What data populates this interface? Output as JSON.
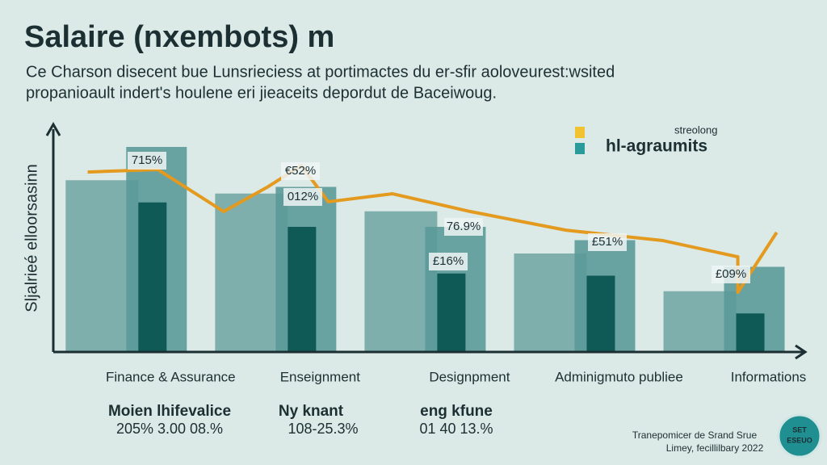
{
  "chart_data": {
    "type": "bar",
    "title": "Salaire (nxembots) m",
    "subtitle": [
      "Ce Charson disecent bue Lunsrieciess at portimactes du er-sfir aoloveurest:wsited",
      "propanioault indert's houlene eri jieaceits depordut de Baceiwoug."
    ],
    "y_label": "Sljalrieé elloorsasinn",
    "categories": [
      "Finance & Assurance",
      "Enseignment",
      "Designpment",
      "Adminigmuto publiee",
      "Informations"
    ],
    "ylim": [
      0,
      100
    ],
    "xlim": [
      -0.65,
      4.37
    ],
    "series": [
      {
        "color": "#6ea5a2",
        "values": [
          77,
          71,
          63,
          44,
          27
        ]
      },
      {
        "color": "#5b9a99",
        "values": [
          92,
          74,
          56,
          50,
          38
        ]
      },
      {
        "color": "#0f5a57",
        "values": [
          67,
          56,
          35,
          34,
          17
        ]
      }
    ],
    "line": {
      "color": "#e39a1e",
      "x": [
        -0.42,
        0.05,
        0.49,
        0.78,
        1.01,
        1.19,
        1.62,
        2.14,
        2.78,
        3.43,
        3.93,
        3.93,
        4.19
      ],
      "values": [
        80.7,
        81.8,
        62.9,
        73.8,
        83.6,
        67.3,
        70.9,
        62.9,
        54.5,
        49.8,
        42.5,
        26.5,
        53.5
      ]
    },
    "annotations": [
      "715%",
      "€52%",
      "012%",
      "76.9%",
      "£16%",
      "£51%",
      "£09%"
    ],
    "legend": {
      "title": "streolong",
      "label": "hl-agraumits",
      "colors": [
        "#f2c230",
        "#2a9a9a"
      ]
    },
    "summary": [
      {
        "name": "Moien lhifevalice",
        "values": "205% 3.00 08.%"
      },
      {
        "name": "Ny knant",
        "values": "108-25.3%"
      },
      {
        "name": "eng kfune",
        "values": "01 40 13.%"
      }
    ],
    "source": [
      "Tranepomicer de Srand Srue",
      "Limey, fecillilbary 2022"
    ],
    "badge": [
      "SET",
      "ESEUO"
    ]
  }
}
